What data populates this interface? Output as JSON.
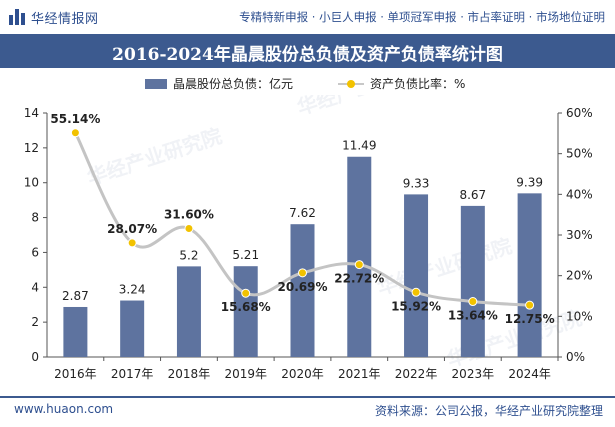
{
  "header": {
    "site_name": "华经情报网",
    "links": "专精特新申报 · 小巨人申报 · 单项冠军申报 · 市占率证明 · 市场地位证明"
  },
  "chart_title": "2016-2024年晶晨股份总负债及资产负债率统计图",
  "footer": {
    "url": "www.huaon.com",
    "source": "资料来源：公司公报，华经产业研究院整理"
  },
  "watermark": "华经产业研究院",
  "colors": {
    "bar": "#5e739f",
    "line": "#c8c8c8",
    "marker": "#f2c200",
    "brand": "#3c5a8f"
  },
  "chart_data": {
    "type": "bar+line",
    "title": "2016-2024年晶晨股份总负债及资产负债率统计图",
    "categories": [
      "2016年",
      "2017年",
      "2018年",
      "2019年",
      "2020年",
      "2021年",
      "2022年",
      "2023年",
      "2024年"
    ],
    "series": [
      {
        "name": "晶晨股份总负债：亿元",
        "type": "bar",
        "axis": "left",
        "values": [
          2.87,
          3.24,
          5.2,
          5.21,
          7.62,
          11.49,
          9.33,
          8.67,
          9.39
        ],
        "labels": [
          "2.87",
          "3.24",
          "5.2",
          "5.21",
          "7.62",
          "11.49",
          "9.33",
          "8.67",
          "9.39"
        ]
      },
      {
        "name": "资产负债比率：%",
        "type": "line",
        "axis": "right",
        "values": [
          55.14,
          28.07,
          31.6,
          15.68,
          20.69,
          22.72,
          15.92,
          13.64,
          12.75
        ],
        "labels": [
          "55.14%",
          "28.07%",
          "31.60%",
          "15.68%",
          "20.69%",
          "22.72%",
          "15.92%",
          "13.64%",
          "12.75%"
        ]
      }
    ],
    "y_left": {
      "min": 0,
      "max": 14,
      "ticks": [
        "0",
        "2",
        "4",
        "6",
        "8",
        "10",
        "12",
        "14"
      ]
    },
    "y_right": {
      "min": 0,
      "max": 60,
      "ticks": [
        "0%",
        "10%",
        "20%",
        "30%",
        "40%",
        "50%",
        "60%"
      ]
    },
    "legend_position": "top-center",
    "grid": false
  }
}
